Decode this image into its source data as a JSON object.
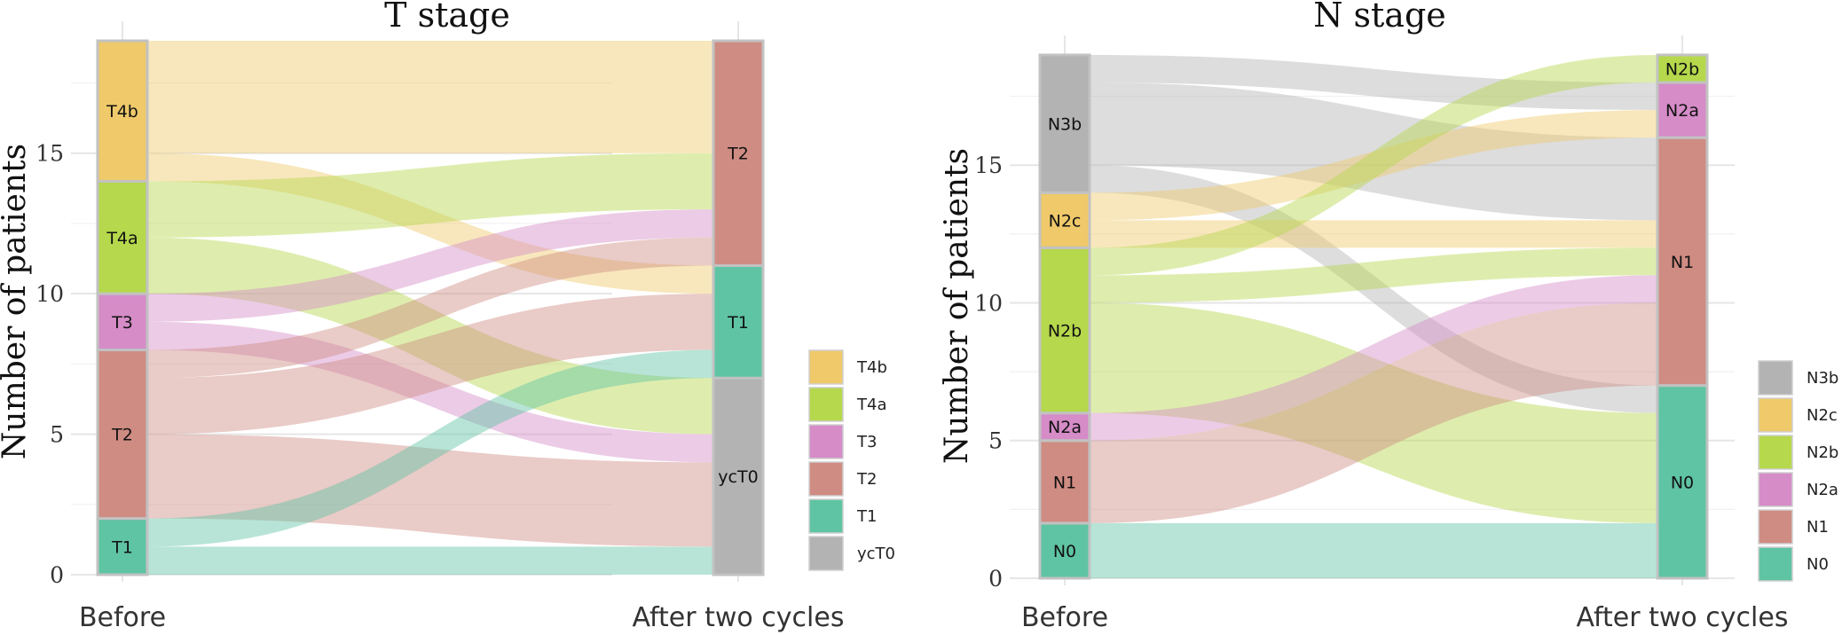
{
  "chart_data": [
    {
      "type": "alluvial",
      "title": "T stage",
      "ylabel": "Number of patients",
      "axes": [
        "Before",
        "After two cycles"
      ],
      "ylim": [
        0,
        19
      ],
      "yticks": [
        0,
        5,
        10,
        15
      ],
      "before_strata": [
        "T1",
        "T2",
        "T3",
        "T4a",
        "T4b"
      ],
      "after_strata": [
        "ycT0",
        "T1",
        "T2"
      ],
      "before_counts": {
        "T1": 2,
        "T2": 6,
        "T3": 2,
        "T4a": 4,
        "T4b": 5
      },
      "after_counts": {
        "ycT0": 7,
        "T1": 4,
        "T2": 8
      },
      "flows": [
        {
          "from": "T4b",
          "to": "T2",
          "value": 4
        },
        {
          "from": "T4b",
          "to": "T1",
          "value": 1
        },
        {
          "from": "T4a",
          "to": "T2",
          "value": 2
        },
        {
          "from": "T4a",
          "to": "ycT0",
          "value": 2
        },
        {
          "from": "T3",
          "to": "T2",
          "value": 1
        },
        {
          "from": "T3",
          "to": "ycT0",
          "value": 1
        },
        {
          "from": "T2",
          "to": "T2",
          "value": 1
        },
        {
          "from": "T2",
          "to": "T1",
          "value": 2
        },
        {
          "from": "T2",
          "to": "ycT0",
          "value": 3
        },
        {
          "from": "T1",
          "to": "T1",
          "value": 1
        },
        {
          "from": "T1",
          "to": "ycT0",
          "value": 1
        }
      ],
      "legend": [
        "T4b",
        "T4a",
        "T3",
        "T2",
        "T1",
        "ycT0"
      ],
      "colors": {
        "T4b": "#EFC96A",
        "T4a": "#B5D84C",
        "T3": "#D58CC7",
        "T2": "#CF8C83",
        "T1": "#5FC4A3",
        "ycT0": "#B3B3B3"
      }
    },
    {
      "type": "alluvial",
      "title": "N stage",
      "ylabel": "Number of patients",
      "axes": [
        "Before",
        "After two cycles"
      ],
      "ylim": [
        0,
        19
      ],
      "yticks": [
        0,
        5,
        10,
        15
      ],
      "before_strata": [
        "N0",
        "N1",
        "N2a",
        "N2b",
        "N2c",
        "N3b"
      ],
      "after_strata": [
        "N0",
        "N1",
        "N2a",
        "N2b"
      ],
      "before_counts": {
        "N0": 2,
        "N1": 3,
        "N2a": 1,
        "N2b": 6,
        "N2c": 2,
        "N3b": 5
      },
      "after_counts": {
        "N0": 7,
        "N1": 9,
        "N2a": 2,
        "N2b": 1
      },
      "flows": [
        {
          "from": "N3b",
          "to": "N2a",
          "value": 1
        },
        {
          "from": "N3b",
          "to": "N1",
          "value": 3
        },
        {
          "from": "N3b",
          "to": "N0",
          "value": 1
        },
        {
          "from": "N2c",
          "to": "N2a",
          "value": 1
        },
        {
          "from": "N2c",
          "to": "N1",
          "value": 1
        },
        {
          "from": "N2b",
          "to": "N2b",
          "value": 1
        },
        {
          "from": "N2b",
          "to": "N1",
          "value": 1
        },
        {
          "from": "N2b",
          "to": "N0",
          "value": 4
        },
        {
          "from": "N2a",
          "to": "N1",
          "value": 1
        },
        {
          "from": "N1",
          "to": "N1",
          "value": 3
        },
        {
          "from": "N0",
          "to": "N0",
          "value": 2
        }
      ],
      "legend": [
        "N3b",
        "N2c",
        "N2b",
        "N2a",
        "N1",
        "N0"
      ],
      "colors": {
        "N3b": "#B3B3B3",
        "N2c": "#EFC96A",
        "N2b": "#B5D84C",
        "N2a": "#D58CC7",
        "N1": "#CF8C83",
        "N0": "#5FC4A3"
      }
    }
  ]
}
